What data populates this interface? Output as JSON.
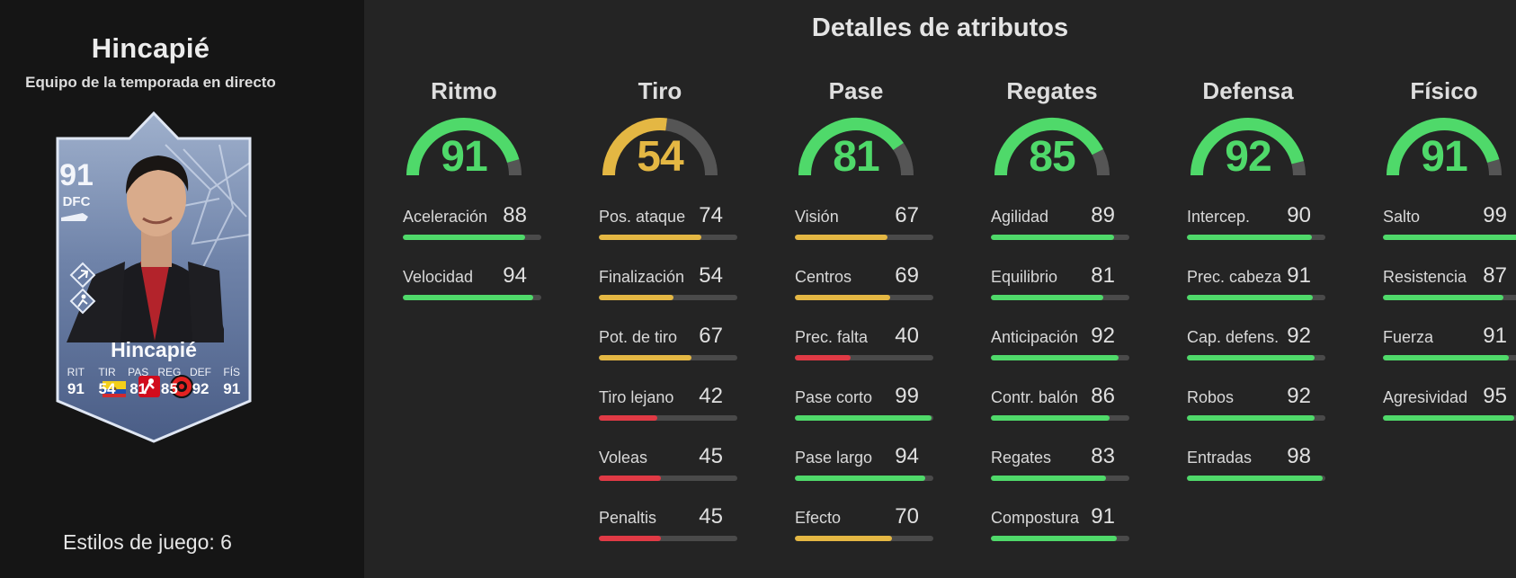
{
  "colors": {
    "green": "#4fd96a",
    "yellow": "#e4b743",
    "red": "#e03a45",
    "track": "#4a4a4a"
  },
  "card": {
    "name": "Hincapié",
    "subtitle": "Equipo de la temporada en directo",
    "rating": "91",
    "position": "DFC",
    "stats": [
      {
        "label": "RIT",
        "value": "91"
      },
      {
        "label": "TIR",
        "value": "54"
      },
      {
        "label": "PAS",
        "value": "81"
      },
      {
        "label": "REG",
        "value": "85"
      },
      {
        "label": "DEF",
        "value": "92"
      },
      {
        "label": "FÍS",
        "value": "91"
      }
    ],
    "icons": [
      "boot-icon",
      "playstyle-icon",
      "playstyle-icon",
      "ecuador-flag-icon",
      "bundesliga-logo-icon",
      "leverkusen-crest-icon"
    ]
  },
  "playstyles_label": "Estilos de juego: 6",
  "title": "Detalles de atributos",
  "categories": [
    {
      "name": "Ritmo",
      "value": 91,
      "attributes": [
        {
          "label": "Aceleración",
          "value": 88
        },
        {
          "label": "Velocidad",
          "value": 94
        }
      ]
    },
    {
      "name": "Tiro",
      "value": 54,
      "attributes": [
        {
          "label": "Pos. ataque",
          "value": 74
        },
        {
          "label": "Finalización",
          "value": 54
        },
        {
          "label": "Pot. de tiro",
          "value": 67
        },
        {
          "label": "Tiro lejano",
          "value": 42
        },
        {
          "label": "Voleas",
          "value": 45
        },
        {
          "label": "Penaltis",
          "value": 45
        }
      ]
    },
    {
      "name": "Pase",
      "value": 81,
      "attributes": [
        {
          "label": "Visión",
          "value": 67
        },
        {
          "label": "Centros",
          "value": 69
        },
        {
          "label": "Prec. falta",
          "value": 40
        },
        {
          "label": "Pase corto",
          "value": 99
        },
        {
          "label": "Pase largo",
          "value": 94
        },
        {
          "label": "Efecto",
          "value": 70
        }
      ]
    },
    {
      "name": "Regates",
      "value": 85,
      "attributes": [
        {
          "label": "Agilidad",
          "value": 89
        },
        {
          "label": "Equilibrio",
          "value": 81
        },
        {
          "label": "Anticipación",
          "value": 92
        },
        {
          "label": "Contr. balón",
          "value": 86
        },
        {
          "label": "Regates",
          "value": 83
        },
        {
          "label": "Compostura",
          "value": 91
        }
      ]
    },
    {
      "name": "Defensa",
      "value": 92,
      "attributes": [
        {
          "label": "Intercep.",
          "value": 90
        },
        {
          "label": "Prec. cabeza",
          "value": 91
        },
        {
          "label": "Cap. defens.",
          "value": 92
        },
        {
          "label": "Robos",
          "value": 92
        },
        {
          "label": "Entradas",
          "value": 98
        }
      ]
    },
    {
      "name": "Físico",
      "value": 91,
      "attributes": [
        {
          "label": "Salto",
          "value": 99
        },
        {
          "label": "Resistencia",
          "value": 87
        },
        {
          "label": "Fuerza",
          "value": 91
        },
        {
          "label": "Agresividad",
          "value": 95
        }
      ]
    }
  ]
}
